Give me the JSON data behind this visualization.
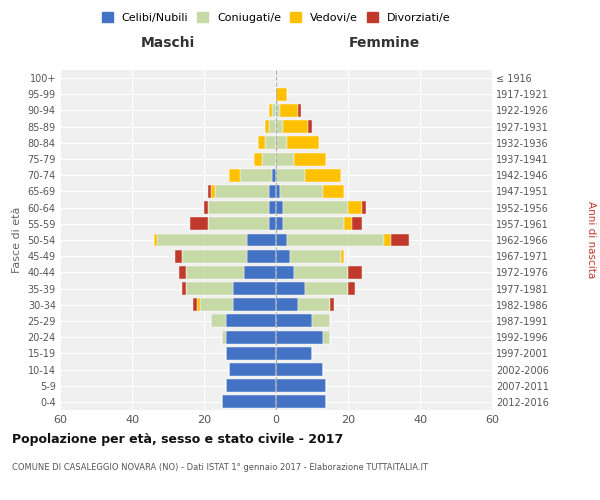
{
  "age_groups": [
    "0-4",
    "5-9",
    "10-14",
    "15-19",
    "20-24",
    "25-29",
    "30-34",
    "35-39",
    "40-44",
    "45-49",
    "50-54",
    "55-59",
    "60-64",
    "65-69",
    "70-74",
    "75-79",
    "80-84",
    "85-89",
    "90-94",
    "95-99",
    "100+"
  ],
  "birth_years": [
    "2012-2016",
    "2007-2011",
    "2002-2006",
    "1997-2001",
    "1992-1996",
    "1987-1991",
    "1982-1986",
    "1977-1981",
    "1972-1976",
    "1967-1971",
    "1962-1966",
    "1957-1961",
    "1952-1956",
    "1947-1951",
    "1942-1946",
    "1937-1941",
    "1932-1936",
    "1927-1931",
    "1922-1926",
    "1917-1921",
    "≤ 1916"
  ],
  "male": {
    "celibi": [
      15,
      14,
      13,
      14,
      14,
      14,
      12,
      12,
      9,
      8,
      8,
      2,
      2,
      2,
      1,
      0,
      0,
      0,
      0,
      0,
      0
    ],
    "coniugati": [
      0,
      0,
      0,
      0,
      1,
      4,
      9,
      13,
      16,
      18,
      25,
      17,
      17,
      15,
      9,
      4,
      3,
      2,
      1,
      0,
      0
    ],
    "vedovi": [
      0,
      0,
      0,
      0,
      0,
      0,
      1,
      0,
      0,
      0,
      1,
      0,
      0,
      1,
      3,
      2,
      2,
      1,
      1,
      0,
      0
    ],
    "divorziati": [
      0,
      0,
      0,
      0,
      0,
      0,
      1,
      1,
      2,
      2,
      0,
      5,
      1,
      1,
      0,
      0,
      0,
      0,
      0,
      0,
      0
    ]
  },
  "female": {
    "nubili": [
      14,
      14,
      13,
      10,
      13,
      10,
      6,
      8,
      5,
      4,
      3,
      2,
      2,
      1,
      0,
      0,
      0,
      0,
      0,
      0,
      0
    ],
    "coniugate": [
      0,
      0,
      0,
      0,
      2,
      5,
      9,
      12,
      15,
      14,
      27,
      17,
      18,
      12,
      8,
      5,
      3,
      2,
      1,
      0,
      0
    ],
    "vedove": [
      0,
      0,
      0,
      0,
      0,
      0,
      0,
      0,
      0,
      1,
      2,
      2,
      4,
      6,
      10,
      9,
      9,
      7,
      5,
      3,
      0
    ],
    "divorziate": [
      0,
      0,
      0,
      0,
      0,
      0,
      1,
      2,
      4,
      0,
      5,
      3,
      1,
      0,
      0,
      0,
      0,
      1,
      1,
      0,
      0
    ]
  },
  "colors": {
    "celibi": "#4472c4",
    "coniugati": "#c8d9a8",
    "vedovi": "#ffc000",
    "divorziati": "#c0392b"
  },
  "title": "Popolazione per età, sesso e stato civile - 2017",
  "subtitle": "COMUNE DI CASALEGGIO NOVARA (NO) - Dati ISTAT 1° gennaio 2017 - Elaborazione TUTTAITALIA.IT",
  "xlabel_left": "Maschi",
  "xlabel_right": "Femmine",
  "ylabel_left": "Fasce di età",
  "ylabel_right": "Anni di nascita",
  "xlim": 60,
  "legend_labels": [
    "Celibi/Nubili",
    "Coniugati/e",
    "Vedovi/e",
    "Divorziati/e"
  ],
  "bg_color": "#ffffff",
  "grid_color": "#cccccc"
}
